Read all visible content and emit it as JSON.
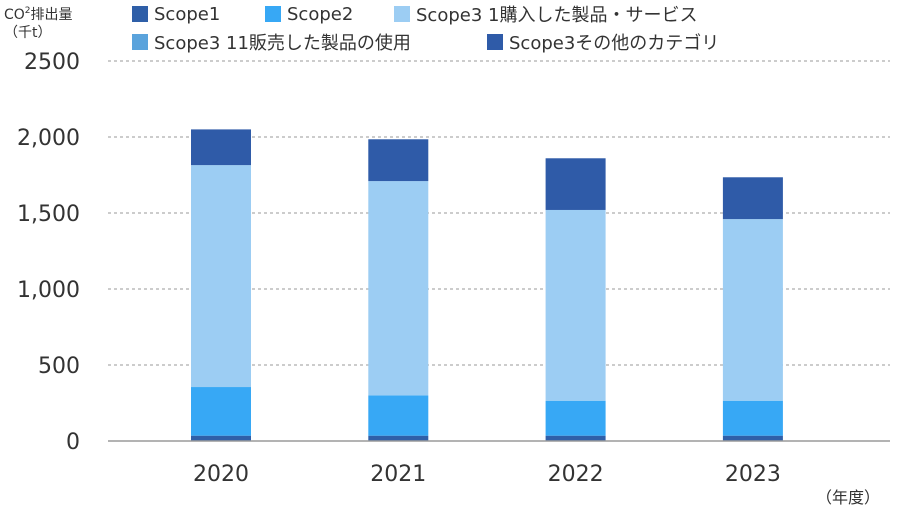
{
  "chart_data": {
    "type": "bar",
    "stacked": true,
    "categories": [
      "2020",
      "2021",
      "2022",
      "2023"
    ],
    "series": [
      {
        "name": "Scope1",
        "color": "#2f5fa8",
        "values": [
          35,
          35,
          35,
          35
        ]
      },
      {
        "name": "Scope2",
        "color": "#37a8f5",
        "values": [
          320,
          265,
          230,
          230
        ]
      },
      {
        "name": "Scope3 1購入した製品・サービス",
        "color": "#9ccdf3",
        "values": [
          1460,
          1410,
          1255,
          1195
        ]
      },
      {
        "name": "Scope3 11販売した製品の使用",
        "color": "#5aa3dc",
        "values": [
          0,
          0,
          0,
          0
        ]
      },
      {
        "name": "Scope3その他のカテゴリ",
        "color": "#2f5ba8",
        "values": [
          235,
          275,
          340,
          275
        ]
      }
    ],
    "ylim": [
      0,
      2500
    ],
    "yticks": [
      {
        "value": 0,
        "label": "0"
      },
      {
        "value": 500,
        "label": "500"
      },
      {
        "value": 1000,
        "label": "1,000"
      },
      {
        "value": 1500,
        "label": "1,500"
      },
      {
        "value": 2000,
        "label": "2,000"
      },
      {
        "value": 2500,
        "label": "2500"
      }
    ],
    "ylabel_line1_pre": "CO",
    "ylabel_line1_sup": "2",
    "ylabel_line1_post": "排出量",
    "ylabel_line2": "（千t）",
    "xunit": "（年度）",
    "grid": true,
    "legend_position": "top"
  }
}
